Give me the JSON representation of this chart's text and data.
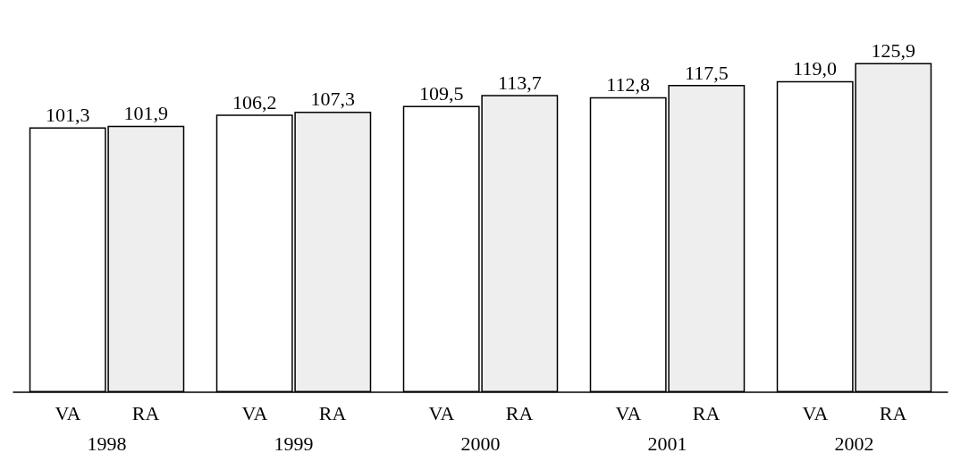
{
  "chart_data": {
    "type": "bar",
    "categories": [
      "1998",
      "1999",
      "2000",
      "2001",
      "2002"
    ],
    "series": [
      {
        "name": "VA",
        "color": "#ffffff",
        "values": [
          101.3,
          106.2,
          109.5,
          112.8,
          119.0
        ],
        "value_labels": [
          "101,3",
          "106,2",
          "109,5",
          "112,8",
          "119,0"
        ]
      },
      {
        "name": "RA",
        "color": "#eeeeee",
        "values": [
          101.9,
          107.3,
          113.7,
          117.5,
          125.9
        ],
        "value_labels": [
          "101,9",
          "107,3",
          "113,7",
          "117,5",
          "125,9"
        ]
      }
    ]
  }
}
